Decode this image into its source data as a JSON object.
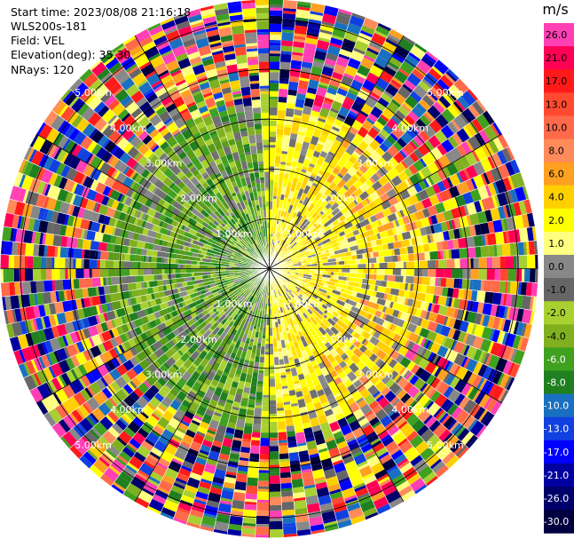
{
  "header": {
    "start_time": "Start time: 2023/08/08 21:16:18",
    "instrument": "WLS200s-181",
    "field": "Field: VEL",
    "elevation": "Elevation(deg): 35.30",
    "nrays": "NRays: 120"
  },
  "chart_data": {
    "type": "heatmap",
    "projection": "polar PPI",
    "field": "VEL",
    "units": "m/s",
    "nrays": 120,
    "range_rings": [
      {
        "label": "1.00km",
        "km": 1
      },
      {
        "label": "2.00km",
        "km": 2
      },
      {
        "label": "3.00km",
        "km": 3
      },
      {
        "label": "4.00km",
        "km": 4
      },
      {
        "label": "5.00km",
        "km": 5
      }
    ],
    "max_range_km": 5.4,
    "colorbar": {
      "label": "m/s",
      "ticks": [
        "26.0",
        "21.0",
        "17.0",
        "13.0",
        "10.0",
        "8.0",
        "6.0",
        "4.0",
        "2.0",
        "1.0",
        "0.0",
        "-1.0",
        "-2.0",
        "-4.0",
        "-6.0",
        "-8.0",
        "-10.0",
        "-13.0",
        "-17.0",
        "-21.0",
        "-26.0",
        "-30.0"
      ],
      "colors": [
        "#ff3fb4",
        "#ff0055",
        "#ff1a1a",
        "#ff4a30",
        "#ff6a4a",
        "#ff8a5a",
        "#ffa020",
        "#ffd000",
        "#ffff00",
        "#ffff80",
        "#888888",
        "#666666",
        "#a8d030",
        "#80b020",
        "#40a020",
        "#208020",
        "#1a70c0",
        "#1040e0",
        "#0000ff",
        "#0000a0",
        "#00006a",
        "#000040"
      ]
    },
    "field_pattern": {
      "positive_sector": "east (yellow, 1–4 m/s)",
      "negative_sector": "west (green, -2 to -6 m/s)",
      "noise_beyond_km": 3.3
    }
  }
}
